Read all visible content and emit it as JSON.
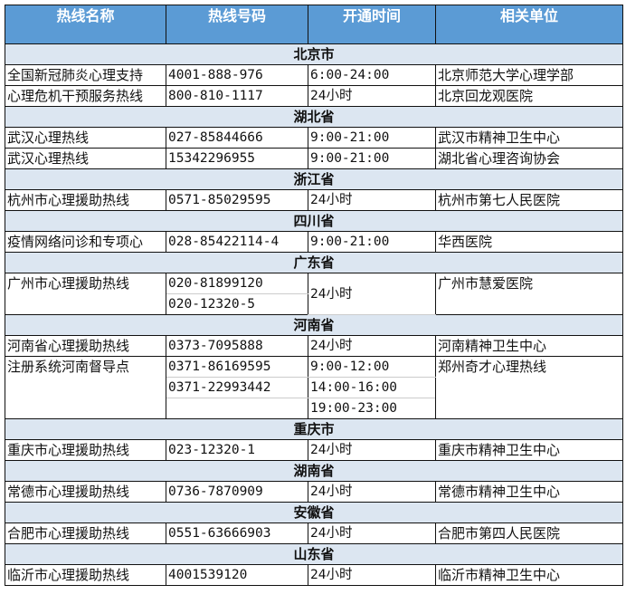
{
  "headers": [
    "热线名称",
    "热线号码",
    "开通时间",
    "相关单位"
  ],
  "sections": [
    {
      "name": "北京市",
      "entries": [
        {
          "name": "全国新冠肺炎心理支持",
          "phones": [
            "4001-888-976"
          ],
          "hours": [
            "6:00-24:00"
          ],
          "unit": "北京师范大学心理学部"
        },
        {
          "name": "心理危机干预服务热线",
          "phones": [
            "800-810-1117"
          ],
          "hours": [
            "24小时"
          ],
          "unit": "北京回龙观医院"
        }
      ]
    },
    {
      "name": "湖北省",
      "entries": [
        {
          "name": "武汉心理热线",
          "phones": [
            "027-85844666"
          ],
          "hours": [
            "9:00-21:00"
          ],
          "unit": "武汉市精神卫生中心"
        },
        {
          "name": "武汉心理热线",
          "phones": [
            "15342296955"
          ],
          "hours": [
            "9:00-21:00"
          ],
          "unit": "湖北省心理咨询协会"
        }
      ]
    },
    {
      "name": "浙江省",
      "entries": [
        {
          "name": "杭州市心理援助热线",
          "phones": [
            "0571-85029595"
          ],
          "hours": [
            "24小时"
          ],
          "unit": "杭州市第七人民医院"
        }
      ]
    },
    {
      "name": "四川省",
      "entries": [
        {
          "name": "疫情网络问诊和专项心",
          "phones": [
            "028-85422114-4"
          ],
          "hours": [
            "9:00-21:00"
          ],
          "unit": "华西医院"
        }
      ]
    },
    {
      "name": "广东省",
      "entries": [
        {
          "name": "广州市心理援助热线",
          "phones": [
            "020-81899120",
            "020-12320-5"
          ],
          "hours": [
            "24小时"
          ],
          "unit": "广州市慧爱医院"
        }
      ]
    },
    {
      "name": "河南省",
      "entries": [
        {
          "name": "河南省心理援助热线",
          "phones": [
            "0373-7095888"
          ],
          "hours": [
            "24小时"
          ],
          "unit": "河南精神卫生中心"
        },
        {
          "name": "注册系统河南督导点",
          "phones": [
            "0371-86169595",
            "0371-22993442"
          ],
          "hours": [
            "9:00-12:00",
            "14:00-16:00",
            "19:00-23:00"
          ],
          "unit": "郑州奇才心理热线"
        }
      ]
    },
    {
      "name": "重庆市",
      "entries": [
        {
          "name": "重庆市心理援助热线",
          "phones": [
            "023-12320-1"
          ],
          "hours": [
            "24小时"
          ],
          "unit": "重庆市精神卫生中心"
        }
      ]
    },
    {
      "name": "湖南省",
      "entries": [
        {
          "name": "常德市心理援助热线",
          "phones": [
            "0736-7870909"
          ],
          "hours": [
            "24小时"
          ],
          "unit": "常德市精神卫生中心"
        }
      ]
    },
    {
      "name": "安徽省",
      "entries": [
        {
          "name": "合肥市心理援助热线",
          "phones": [
            "0551-63666903"
          ],
          "hours": [
            "24小时"
          ],
          "unit": "合肥市第四人民医院"
        }
      ]
    },
    {
      "name": "山东省",
      "entries": [
        {
          "name": "临沂市心理援助热线",
          "phones": [
            "4001539120"
          ],
          "hours": [
            "24小时"
          ],
          "unit": "临沂市精神卫生中心"
        }
      ]
    }
  ]
}
